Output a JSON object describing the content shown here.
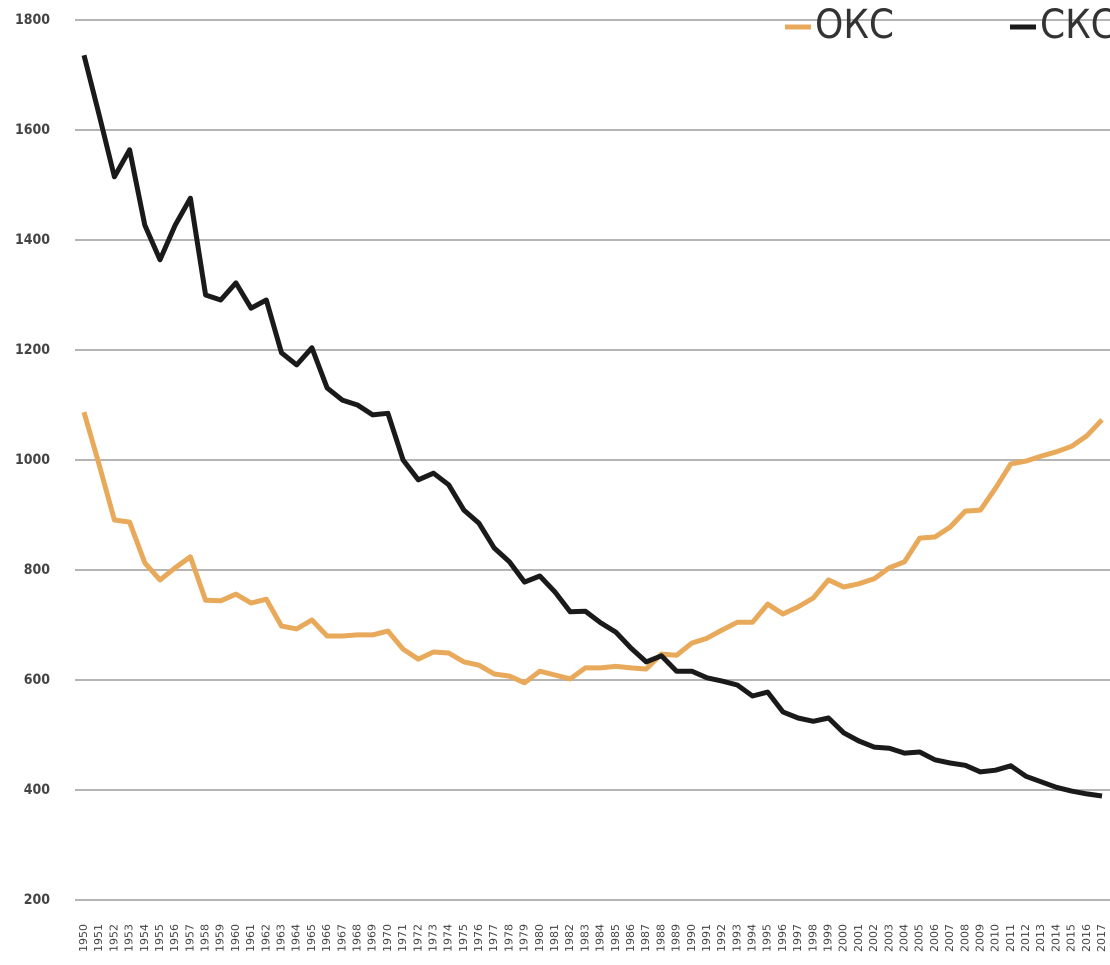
{
  "chart_data": {
    "type": "line",
    "x": [
      1950,
      1951,
      1952,
      1953,
      1954,
      1955,
      1956,
      1957,
      1958,
      1959,
      1960,
      1961,
      1962,
      1963,
      1964,
      1965,
      1966,
      1967,
      1968,
      1969,
      1970,
      1971,
      1972,
      1973,
      1974,
      1975,
      1976,
      1977,
      1978,
      1979,
      1980,
      1981,
      1982,
      1983,
      1984,
      1985,
      1986,
      1987,
      1988,
      1989,
      1990,
      1991,
      1992,
      1993,
      1994,
      1995,
      1996,
      1997,
      1998,
      1999,
      2000,
      2001,
      2002,
      2003,
      2004,
      2005,
      2006,
      2007,
      2008,
      2009,
      2010,
      2011,
      2012,
      2013,
      2014,
      2015,
      2016,
      2017
    ],
    "series": [
      {
        "name": "ОКС",
        "color": "#e8a95a",
        "values": [
          1087,
          991,
          891,
          887,
          813,
          782,
          804,
          824,
          745,
          744,
          756,
          740,
          747,
          698,
          693,
          709,
          680,
          680,
          682,
          682,
          689,
          656,
          638,
          651,
          649,
          633,
          627,
          611,
          607,
          595,
          616,
          609,
          602,
          622,
          622,
          625,
          622,
          620,
          647,
          645,
          667,
          676,
          691,
          705,
          705,
          738,
          720,
          733,
          749,
          782,
          769,
          775,
          784,
          804,
          815,
          858,
          860,
          878,
          907,
          909,
          949,
          993,
          998,
          1007,
          1015,
          1025,
          1044,
          1073
        ]
      },
      {
        "name": "СКС",
        "color": "#1a1a1a",
        "values": [
          1736,
          1627,
          1515,
          1564,
          1427,
          1364,
          1427,
          1476,
          1300,
          1291,
          1322,
          1276,
          1291,
          1195,
          1173,
          1204,
          1131,
          1109,
          1100,
          1082,
          1085,
          1000,
          964,
          976,
          955,
          909,
          885,
          840,
          815,
          778,
          789,
          760,
          724,
          725,
          704,
          687,
          658,
          633,
          644,
          616,
          616,
          604,
          598,
          591,
          571,
          578,
          542,
          531,
          525,
          531,
          504,
          489,
          478,
          476,
          467,
          469,
          455,
          449,
          445,
          433,
          436,
          444,
          425,
          415,
          405,
          398,
          393,
          389
        ]
      }
    ],
    "ylim": [
      200,
      1800
    ],
    "yticks": [
      200,
      400,
      600,
      800,
      1000,
      1200,
      1400,
      1600,
      1800
    ],
    "grid": true
  }
}
